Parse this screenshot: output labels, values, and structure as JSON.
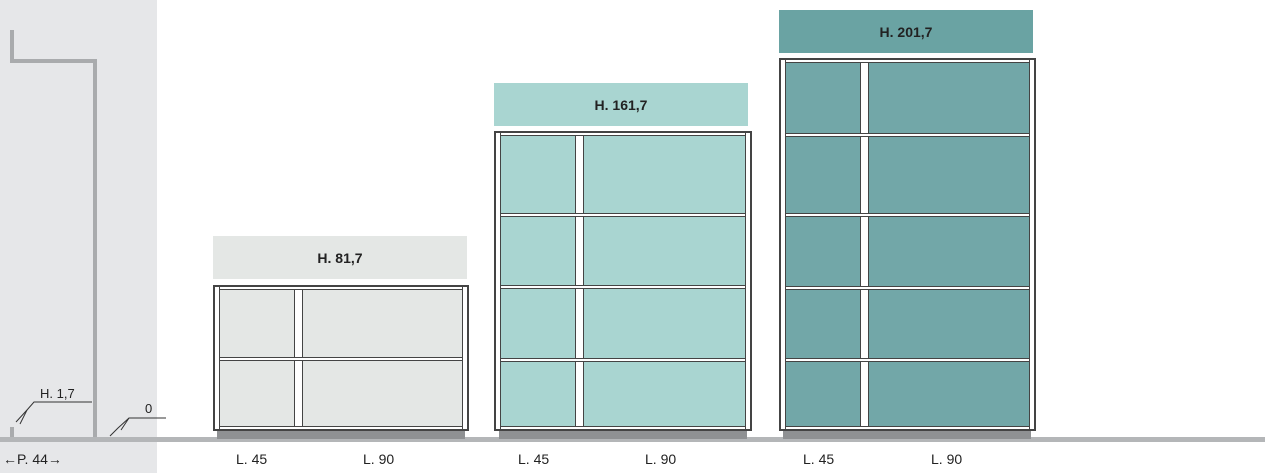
{
  "profile": {
    "height_label": "H. 1,7",
    "zero_label": "0",
    "depth_label": "P. 44"
  },
  "cabinets": [
    {
      "height_label": "H. 81,7",
      "width_labels": [
        "L. 45",
        "L. 90"
      ],
      "color": "#e4e7e5",
      "label_bg": "#e4e7e5",
      "shelf_levels": 2
    },
    {
      "height_label": "H. 161,7",
      "width_labels": [
        "L. 45",
        "L. 90"
      ],
      "color": "#a9d5d1",
      "label_bg": "#a9d5d1",
      "shelf_levels": 4
    },
    {
      "height_label": "H. 201,7",
      "width_labels": [
        "L. 45",
        "L. 90"
      ],
      "color": "#72a7a8",
      "label_bg": "#6aa3a3",
      "shelf_levels": 5
    }
  ]
}
